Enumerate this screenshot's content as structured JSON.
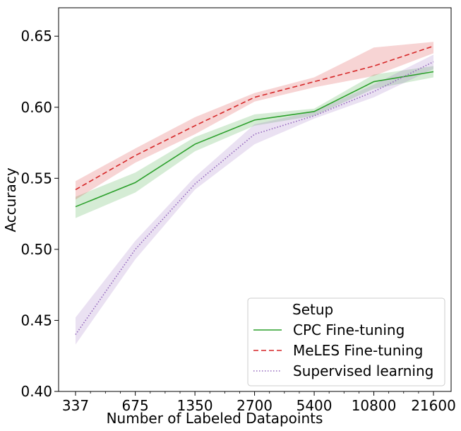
{
  "chart_data": {
    "type": "line",
    "title": "",
    "xlabel": "Number of Labeled Datapoints",
    "ylabel": "Accuracy",
    "x_scale": "log",
    "x": [
      337,
      675,
      1350,
      2700,
      5400,
      10800,
      21600
    ],
    "x_tick_labels": [
      "337",
      "675",
      "1350",
      "2700",
      "5400",
      "10800",
      "21600"
    ],
    "ylim": [
      0.4,
      0.67
    ],
    "y_ticks": [
      0.4,
      0.45,
      0.5,
      0.55,
      0.6,
      0.65
    ],
    "y_tick_labels": [
      "0.40",
      "0.45",
      "0.50",
      "0.55",
      "0.60",
      "0.65"
    ],
    "grid": false,
    "legend": {
      "title": "Setup",
      "placement": "lower-right"
    },
    "series": [
      {
        "name": "CPC Fine-tuning",
        "color": "#2ca02c",
        "linestyle": "solid",
        "values": [
          0.53,
          0.547,
          0.574,
          0.591,
          0.597,
          0.618,
          0.625
        ],
        "lower": [
          0.522,
          0.54,
          0.569,
          0.587,
          0.594,
          0.613,
          0.621
        ],
        "upper": [
          0.537,
          0.554,
          0.579,
          0.595,
          0.599,
          0.623,
          0.629
        ]
      },
      {
        "name": "MeLES Fine-tuning",
        "color": "#d62728",
        "linestyle": "dashed",
        "values": [
          0.542,
          0.566,
          0.587,
          0.607,
          0.618,
          0.629,
          0.643
        ],
        "lower": [
          0.535,
          0.561,
          0.581,
          0.604,
          0.614,
          0.622,
          0.638
        ],
        "upper": [
          0.548,
          0.571,
          0.593,
          0.61,
          0.621,
          0.642,
          0.646
        ]
      },
      {
        "name": "Supervised learning",
        "color": "#9467bd",
        "linestyle": "dotted",
        "values": [
          0.44,
          0.5,
          0.546,
          0.581,
          0.594,
          0.611,
          0.632
        ],
        "lower": [
          0.433,
          0.493,
          0.542,
          0.574,
          0.592,
          0.607,
          0.627
        ],
        "upper": [
          0.452,
          0.506,
          0.551,
          0.588,
          0.597,
          0.616,
          0.637
        ]
      }
    ]
  }
}
